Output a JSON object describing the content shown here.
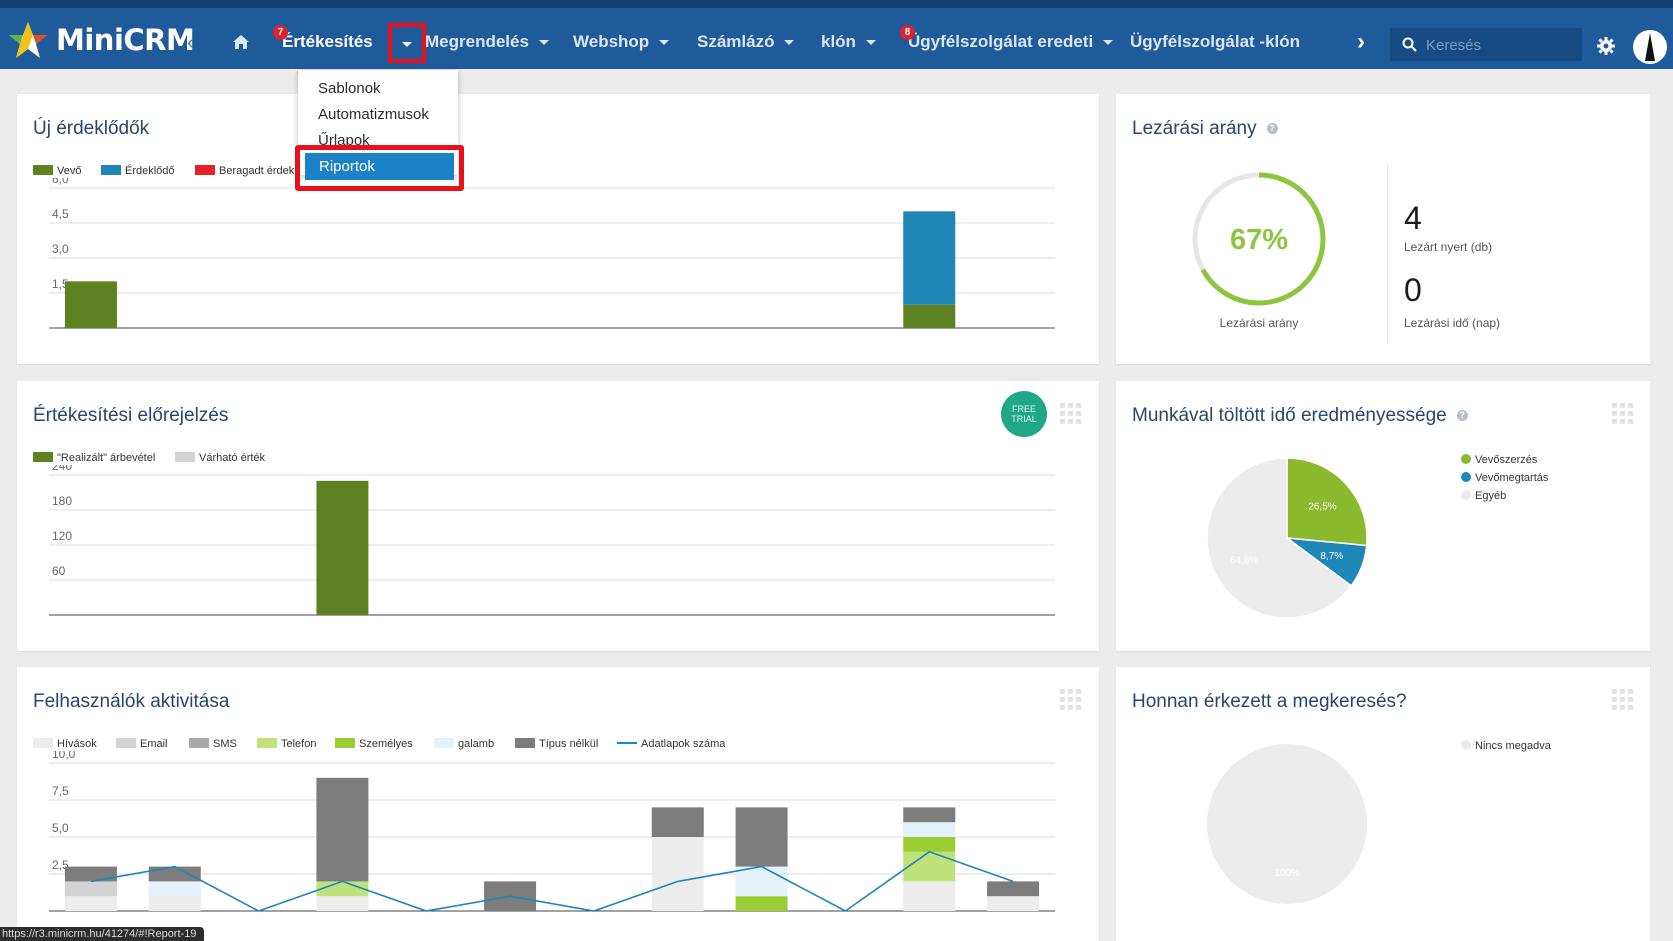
{
  "app": {
    "name": "MiniCRM"
  },
  "nav": {
    "items": [
      {
        "label": "Értékesítés",
        "badge": "7"
      },
      {
        "label": "Megrendelés"
      },
      {
        "label": "Webshop"
      },
      {
        "label": "Számlázó"
      },
      {
        "label": "klón"
      },
      {
        "label": "Ügyfélszolgálat eredeti",
        "badge": "8"
      },
      {
        "label": "Ügyfélszolgálat -klón"
      }
    ],
    "search_placeholder": "Keresés"
  },
  "dropdown": {
    "items": [
      "Sablonok",
      "Automatizmusok",
      "Űrlapok",
      "Riportok"
    ],
    "selected": "Riportok"
  },
  "status_url": "https://r3.minicrm.hu/41274/#!Report-19",
  "cards": {
    "new_leads": {
      "title": "Új érdeklődők",
      "legend": [
        "Vevő",
        "Érdeklődő",
        "Beragadt érdek"
      ]
    },
    "closing_rate": {
      "title": "Lezárási arány",
      "percent": "67%",
      "percent_label": "Lezárási arány",
      "won_value": "4",
      "won_label": "Lezárt nyert (db)",
      "time_value": "0",
      "time_label": "Lezárási idő (nap)"
    },
    "forecast": {
      "title": "Értékesítési előrejelzés",
      "badge": "FREE TRIAL",
      "legend": [
        "\"Realizált\" árbevétel",
        "Várható érték"
      ]
    },
    "work_time": {
      "title": "Munkával töltött idő eredményessége",
      "legend": [
        "Vevőszerzés",
        "Vevőmegtartás",
        "Egyéb"
      ]
    },
    "activity": {
      "title": "Felhasználók aktivitása",
      "legend": [
        "Hívások",
        "Email",
        "SMS",
        "Telefon",
        "Személyes",
        "galamb",
        "Típus nélkül",
        "Adatlapok száma"
      ]
    },
    "source": {
      "title": "Honnan érkezett a megkeresés?",
      "legend": [
        "Nincs megadva"
      ]
    }
  },
  "colors": {
    "vevo": "#5e8221",
    "erdeklodo": "#1f86b8",
    "beragadt": "#e8202a",
    "forecast_realized": "#5e8221",
    "forecast_expected": "#d3d3d3",
    "pie_green": "#8ab92d",
    "pie_blue": "#1f86b8",
    "pie_grey": "#ececec"
  },
  "chart_data": [
    {
      "type": "bar",
      "title": "Új érdeklődők",
      "series": [
        {
          "name": "Vevő",
          "values": [
            2,
            0,
            0,
            0,
            0,
            0,
            0,
            0,
            0,
            0,
            1,
            0
          ]
        },
        {
          "name": "Érdeklődő",
          "values": [
            0,
            0,
            0,
            0,
            0,
            0,
            0,
            0,
            0,
            0,
            4,
            0
          ]
        },
        {
          "name": "Beragadt érdek",
          "values": [
            0,
            0,
            0,
            0,
            0,
            0,
            0,
            0,
            0,
            0,
            0,
            0
          ]
        }
      ],
      "stacked": true,
      "y_ticks": [
        "1,5",
        "3,0",
        "4,5",
        "6,0"
      ],
      "ylim": [
        0,
        6
      ]
    },
    {
      "type": "bar",
      "title": "Értékesítési előrejelzés",
      "series": [
        {
          "name": "\"Realizált\" árbevétel",
          "values": [
            0,
            0,
            0,
            230,
            0,
            0,
            0,
            0,
            0,
            0,
            0,
            0
          ]
        },
        {
          "name": "Várható érték",
          "values": [
            0,
            0,
            0,
            0,
            0,
            0,
            0,
            0,
            0,
            0,
            0,
            0
          ]
        }
      ],
      "y_ticks": [
        "60",
        "120",
        "180",
        "240"
      ],
      "ylim": [
        0,
        240
      ]
    },
    {
      "type": "pie",
      "title": "Munkával töltött idő eredményessége",
      "slices": [
        {
          "name": "Vevőszerzés",
          "value": 26.5,
          "label": "26,5%"
        },
        {
          "name": "Vevőmegtartás",
          "value": 8.7,
          "label": "8,7%"
        },
        {
          "name": "Egyéb",
          "value": 64.8,
          "label": "64,8%"
        }
      ]
    },
    {
      "type": "bar",
      "title": "Felhasználók aktivitása",
      "stacked": true,
      "series": [
        {
          "name": "Hívások",
          "values": [
            1,
            1,
            0,
            1,
            0,
            0,
            0,
            5,
            0,
            0,
            2,
            1
          ]
        },
        {
          "name": "Email",
          "values": [
            1,
            0,
            0,
            0,
            0,
            0,
            0,
            0,
            0,
            0,
            0,
            0
          ]
        },
        {
          "name": "SMS",
          "values": [
            0,
            0,
            0,
            0,
            0,
            0,
            0,
            0,
            0,
            0,
            0,
            0
          ]
        },
        {
          "name": "Telefon",
          "values": [
            0,
            0,
            0,
            1,
            0,
            0,
            0,
            0,
            0,
            0,
            2,
            0
          ]
        },
        {
          "name": "Személyes",
          "values": [
            0,
            0,
            0,
            0,
            0,
            0,
            0,
            0,
            1,
            0,
            1,
            0
          ]
        },
        {
          "name": "galamb",
          "values": [
            0,
            1,
            0,
            0,
            0,
            0,
            0,
            0,
            2,
            0,
            1,
            0
          ]
        },
        {
          "name": "Típus nélkül",
          "values": [
            1,
            1,
            0,
            7,
            0,
            2,
            0,
            2,
            4,
            0,
            1,
            1
          ]
        }
      ],
      "line": {
        "name": "Adatlapok száma",
        "values": [
          2,
          3,
          0,
          2,
          0,
          1,
          0,
          2,
          3,
          0,
          4,
          2
        ]
      },
      "y_ticks": [
        "2,5",
        "5,0",
        "7,5",
        "10,0"
      ],
      "ylim": [
        0,
        10
      ]
    },
    {
      "type": "pie",
      "title": "Honnan érkezett a megkeresés?",
      "slices": [
        {
          "name": "Nincs megadva",
          "value": 100,
          "label": "100%"
        }
      ]
    }
  ]
}
